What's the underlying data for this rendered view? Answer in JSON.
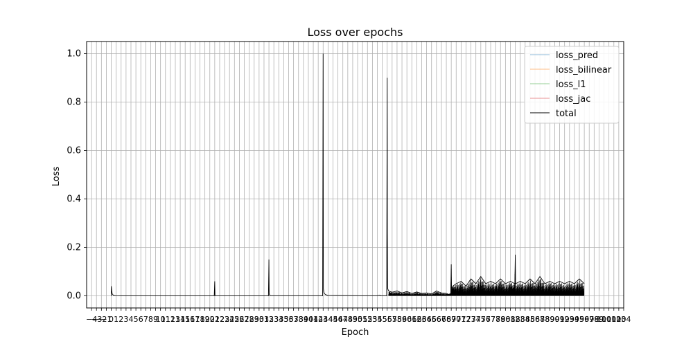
{
  "chart_data": {
    "type": "line",
    "title": "Loss over epochs",
    "xlabel": "Epoch",
    "ylabel": "Loss",
    "xlim": [
      -5,
      104
    ],
    "ylim": [
      -0.05,
      1.05
    ],
    "yticks": [
      0.0,
      0.2,
      0.4,
      0.6,
      0.8,
      1.0
    ],
    "ytick_labels": [
      "0.0",
      "0.2",
      "0.4",
      "0.6",
      "0.8",
      "1.0"
    ],
    "xticks": [
      -4,
      -3,
      -2,
      -1,
      0,
      1,
      2,
      3,
      4,
      5,
      6,
      7,
      8,
      9,
      10,
      11,
      12,
      13,
      14,
      15,
      16,
      17,
      18,
      19,
      20,
      21,
      22,
      23,
      24,
      25,
      26,
      27,
      28,
      29,
      30,
      31,
      32,
      33,
      34,
      35,
      36,
      37,
      38,
      39,
      40,
      41,
      42,
      43,
      44,
      45,
      46,
      47,
      48,
      49,
      50,
      51,
      52,
      53,
      54,
      55,
      56,
      57,
      58,
      59,
      60,
      61,
      62,
      63,
      64,
      65,
      66,
      67,
      68,
      69,
      70,
      71,
      72,
      73,
      74,
      75,
      76,
      77,
      78,
      79,
      80,
      81,
      82,
      83,
      84,
      85,
      86,
      87,
      88,
      89,
      90,
      91,
      92,
      93,
      94,
      95,
      96,
      97,
      98,
      99,
      100,
      101,
      102,
      103,
      104
    ],
    "grid": true,
    "legend_position": "top-right",
    "series": [
      {
        "name": "loss_pred",
        "color": "#1f77b4",
        "points": []
      },
      {
        "name": "loss_bilinear",
        "color": "#ff7f0e",
        "points": []
      },
      {
        "name": "loss_l1",
        "color": "#2ca02c",
        "points": []
      },
      {
        "name": "loss_jac",
        "color": "#d62728",
        "points": []
      },
      {
        "name": "total",
        "color": "#000000",
        "points": [
          [
            0.0,
            0.0
          ],
          [
            0.02,
            0.04
          ],
          [
            0.1,
            0.02
          ],
          [
            0.2,
            0.008
          ],
          [
            0.4,
            0.003
          ],
          [
            0.7,
            0.001
          ],
          [
            1.0,
            0.0005
          ],
          [
            2.0,
            0.0003
          ],
          [
            10.0,
            0.0002
          ],
          [
            20.0,
            0.0002
          ],
          [
            20.9,
            0.0002
          ],
          [
            21.0,
            0.06
          ],
          [
            21.05,
            0.001
          ],
          [
            21.2,
            0.0002
          ],
          [
            30.0,
            0.0002
          ],
          [
            31.9,
            0.0002
          ],
          [
            32.0,
            0.15
          ],
          [
            32.05,
            0.01
          ],
          [
            32.15,
            0.002
          ],
          [
            32.3,
            0.0005
          ],
          [
            42.0,
            0.0005
          ],
          [
            42.9,
            0.0005
          ],
          [
            43.0,
            1.0
          ],
          [
            43.05,
            0.03
          ],
          [
            43.15,
            0.015
          ],
          [
            43.3,
            0.008
          ],
          [
            43.6,
            0.004
          ],
          [
            44.0,
            0.002
          ],
          [
            50.0,
            0.0005
          ],
          [
            54.0,
            0.0005
          ],
          [
            54.5,
            0.003
          ],
          [
            54.6,
            0.0005
          ],
          [
            56.0,
            0.0005
          ],
          [
            55.9,
            0.0005
          ],
          [
            56.0,
            0.9
          ],
          [
            56.03,
            0.26
          ],
          [
            56.1,
            0.03
          ],
          [
            56.3,
            0.02
          ],
          [
            57.0,
            0.015
          ],
          [
            58.0,
            0.02
          ],
          [
            59.0,
            0.012
          ],
          [
            60.0,
            0.018
          ],
          [
            61.0,
            0.01
          ],
          [
            62.0,
            0.016
          ],
          [
            63.0,
            0.01
          ],
          [
            64.0,
            0.012
          ],
          [
            65.0,
            0.008
          ],
          [
            66.0,
            0.02
          ],
          [
            67.0,
            0.012
          ],
          [
            68.0,
            0.01
          ],
          [
            68.5,
            0.006
          ],
          [
            68.9,
            0.01
          ],
          [
            69.0,
            0.13
          ],
          [
            69.05,
            0.03
          ],
          [
            69.3,
            0.04
          ],
          [
            70.0,
            0.05
          ],
          [
            71.0,
            0.06
          ],
          [
            72.0,
            0.04
          ],
          [
            73.0,
            0.07
          ],
          [
            74.0,
            0.05
          ],
          [
            75.0,
            0.08
          ],
          [
            76.0,
            0.05
          ],
          [
            77.0,
            0.06
          ],
          [
            78.0,
            0.05
          ],
          [
            79.0,
            0.07
          ],
          [
            80.0,
            0.05
          ],
          [
            81.0,
            0.06
          ],
          [
            81.9,
            0.05
          ],
          [
            82.0,
            0.17
          ],
          [
            82.05,
            0.05
          ],
          [
            83.0,
            0.06
          ],
          [
            84.0,
            0.05
          ],
          [
            85.0,
            0.07
          ],
          [
            86.0,
            0.05
          ],
          [
            87.0,
            0.08
          ],
          [
            88.0,
            0.05
          ],
          [
            89.0,
            0.06
          ],
          [
            90.0,
            0.05
          ],
          [
            91.0,
            0.06
          ],
          [
            92.0,
            0.05
          ],
          [
            93.0,
            0.06
          ],
          [
            94.0,
            0.05
          ],
          [
            95.0,
            0.07
          ],
          [
            96.0,
            0.05
          ]
        ]
      }
    ]
  }
}
